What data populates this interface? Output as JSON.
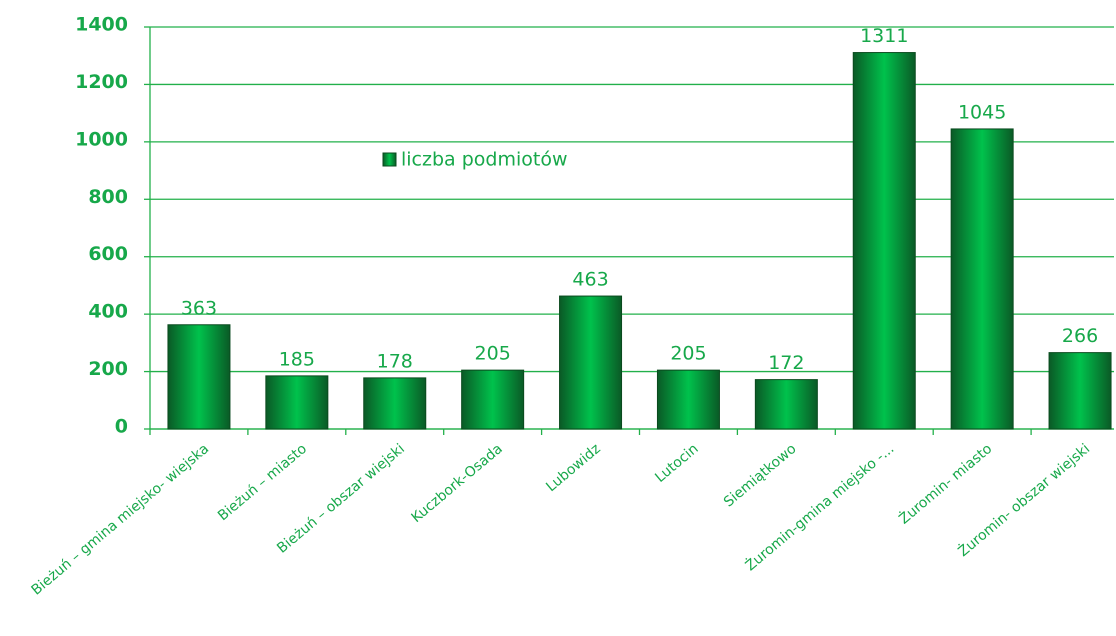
{
  "chart_data": {
    "type": "bar",
    "categories": [
      "Bieżuń – gmina miejsko- wiejska",
      "Bieżuń – miasto",
      "Bieżuń – obszar wiejski",
      "Kuczbork-Osada",
      "Lubowidz",
      "Lutocin",
      "Siemiątkowo",
      "Żuromin-gmina miejsko -...",
      "Żuromin- miasto",
      "Żuromin- obszar wiejski"
    ],
    "series": [
      {
        "name": "liczba podmiotów",
        "color": "#0fa84a",
        "values": [
          363,
          185,
          178,
          205,
          463,
          205,
          172,
          1311,
          1045,
          266
        ]
      }
    ],
    "ylim": [
      0,
      1400
    ],
    "yticks": [
      0,
      200,
      400,
      600,
      800,
      1000,
      1200,
      1400
    ],
    "grid": true,
    "legend": "upper left"
  }
}
